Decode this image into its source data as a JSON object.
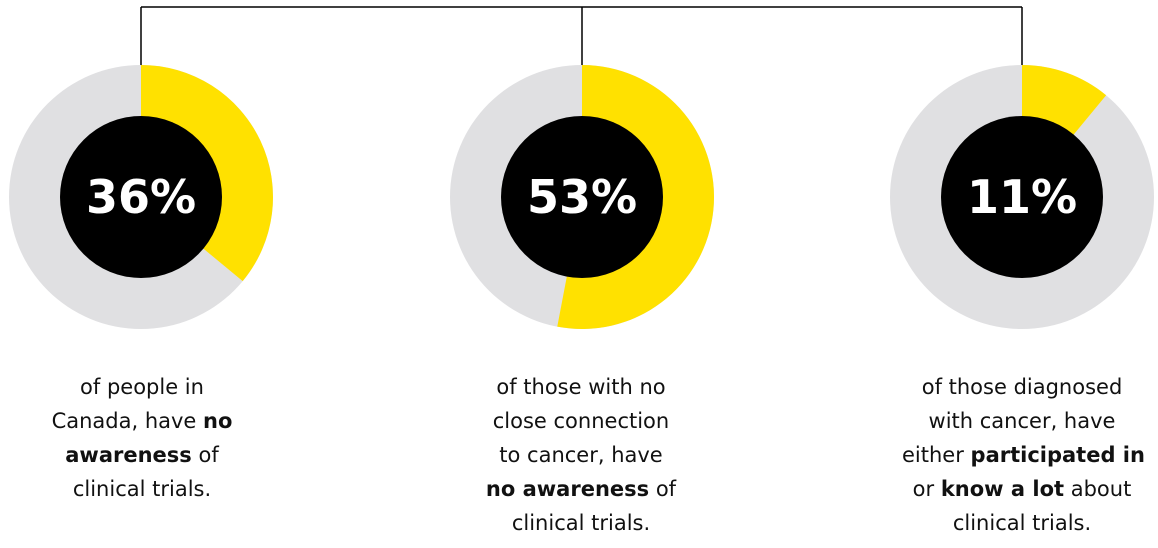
{
  "colors": {
    "highlight": "#FFE100",
    "remainder": "#E0E0E2",
    "center": "#000000",
    "connector": "#000000",
    "label": "#FFFFFF",
    "text": "#111111"
  },
  "chart_data": {
    "type": "pie",
    "variant": "donut",
    "items": [
      {
        "value": 36,
        "label": "36%",
        "caption": [
          [
            {
              "t": "of people in",
              "b": false
            }
          ],
          [
            {
              "t": "Canada, have ",
              "b": false
            },
            {
              "t": "no",
              "b": true
            }
          ],
          [
            {
              "t": "awareness",
              "b": true
            },
            {
              "t": " of",
              "b": false
            }
          ],
          [
            {
              "t": "clinical trials.",
              "b": false
            }
          ]
        ]
      },
      {
        "value": 53,
        "label": "53%",
        "caption": [
          [
            {
              "t": "of those with no",
              "b": false
            }
          ],
          [
            {
              "t": "close connection",
              "b": false
            }
          ],
          [
            {
              "t": "to cancer, have",
              "b": false
            }
          ],
          [
            {
              "t": "no awareness",
              "b": true
            },
            {
              "t": " of",
              "b": false
            }
          ],
          [
            {
              "t": "clinical trials.",
              "b": false
            }
          ]
        ]
      },
      {
        "value": 11,
        "label": "11%",
        "caption": [
          [
            {
              "t": "of those diagnosed",
              "b": false
            }
          ],
          [
            {
              "t": "with cancer, have",
              "b": false
            }
          ],
          [
            {
              "t": "either ",
              "b": false
            },
            {
              "t": "participated in",
              "b": true
            }
          ],
          [
            {
              "t": "or ",
              "b": false
            },
            {
              "t": "know a lot",
              "b": true
            },
            {
              "t": " about",
              "b": false
            }
          ],
          [
            {
              "t": "clinical trials.",
              "b": false
            }
          ]
        ]
      }
    ]
  }
}
